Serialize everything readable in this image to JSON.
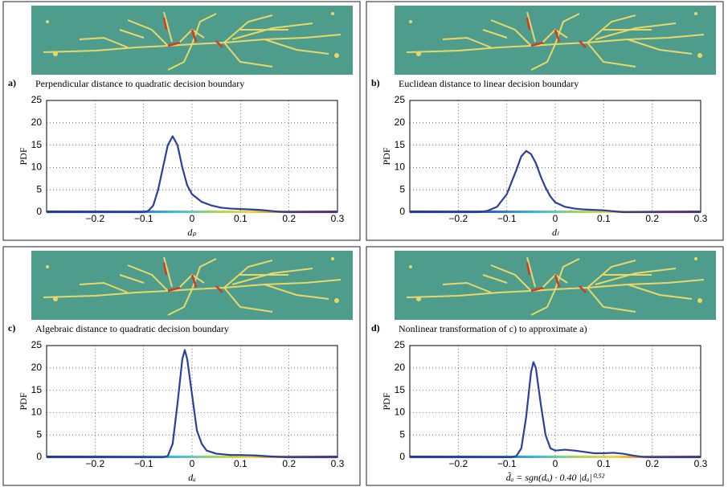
{
  "chart_data": [
    {
      "type": "line",
      "panel_label": "a)",
      "title": "Perpendicular distance to quadratic decision boundary",
      "xlabel": "dₚ",
      "ylabel": "PDF",
      "xlim": [
        -0.3,
        0.3
      ],
      "ylim": [
        0,
        25
      ],
      "xticks": [
        {
          "value": -0.2,
          "label": "−0.2"
        },
        {
          "value": -0.1,
          "label": "−0.1"
        },
        0,
        0.1,
        0.2,
        0.3
      ],
      "yticks": [
        0,
        5,
        10,
        15,
        20,
        25
      ],
      "grid": true,
      "color": "#2b3f9e",
      "x": [
        -0.3,
        -0.1,
        -0.09,
        -0.08,
        -0.07,
        -0.06,
        -0.05,
        -0.04,
        -0.03,
        -0.02,
        -0.01,
        0,
        0.02,
        0.04,
        0.06,
        0.08,
        0.1,
        0.12,
        0.14,
        0.16,
        0.18,
        0.2,
        0.3
      ],
      "values": [
        0,
        0,
        0.3,
        1.5,
        5,
        10,
        15,
        17,
        15,
        10,
        6,
        4,
        2.3,
        1.5,
        1,
        0.8,
        0.7,
        0.6,
        0.5,
        0.3,
        0.1,
        0,
        0
      ]
    },
    {
      "type": "line",
      "panel_label": "b)",
      "title": "Euclidean distance to linear decision boundary",
      "xlabel": "dₗ",
      "ylabel": "PDF",
      "xlim": [
        -0.3,
        0.3
      ],
      "ylim": [
        0,
        25
      ],
      "xticks": [
        {
          "value": -0.2,
          "label": "−0.2"
        },
        {
          "value": -0.1,
          "label": "−0.1"
        },
        0,
        0.1,
        0.2,
        0.3
      ],
      "yticks": [
        0,
        5,
        10,
        15,
        20,
        25
      ],
      "grid": true,
      "color": "#2b3f9e",
      "x": [
        -0.3,
        -0.16,
        -0.14,
        -0.12,
        -0.1,
        -0.08,
        -0.07,
        -0.06,
        -0.05,
        -0.04,
        -0.03,
        -0.02,
        -0.01,
        0,
        0.02,
        0.04,
        0.06,
        0.08,
        0.1,
        0.12,
        0.14,
        0.3
      ],
      "values": [
        0,
        0,
        0.3,
        1.2,
        4,
        9.5,
        12.5,
        13.7,
        13,
        11,
        8,
        5.5,
        3.5,
        2.2,
        1.2,
        0.8,
        0.6,
        0.5,
        0.4,
        0.2,
        0,
        0
      ]
    },
    {
      "type": "line",
      "panel_label": "c)",
      "title": "Algebraic distance to quadratic decision boundary",
      "xlabel": "dₐ",
      "ylabel": "PDF",
      "xlim": [
        -0.3,
        0.3
      ],
      "ylim": [
        0,
        25
      ],
      "xticks": [
        {
          "value": -0.2,
          "label": "−0.2"
        },
        {
          "value": -0.1,
          "label": "−0.1"
        },
        0,
        0.1,
        0.2,
        0.3
      ],
      "yticks": [
        0,
        5,
        10,
        15,
        20,
        25
      ],
      "grid": true,
      "color": "#2b3f9e",
      "x": [
        -0.3,
        -0.06,
        -0.05,
        -0.04,
        -0.03,
        -0.02,
        -0.015,
        -0.01,
        0,
        0.01,
        0.02,
        0.03,
        0.05,
        0.08,
        0.1,
        0.13,
        0.16,
        0.2,
        0.3
      ],
      "values": [
        0,
        0,
        0.3,
        3,
        12,
        22,
        24,
        22,
        14,
        6,
        3,
        1.5,
        0.8,
        0.5,
        0.5,
        0.4,
        0.2,
        0,
        0
      ]
    },
    {
      "type": "line",
      "panel_label": "d)",
      "title": "Nonlinear transformation of c) to approximate a)",
      "xlabel": "d̃ₐ = sgn(dₐ) · 0.40 |dₐ|⁰·⁵²",
      "ylabel": "PDF",
      "xlim": [
        -0.3,
        0.3
      ],
      "ylim": [
        0,
        25
      ],
      "xticks": [
        {
          "value": -0.2,
          "label": "−0.2"
        },
        {
          "value": -0.1,
          "label": "−0.1"
        },
        0,
        0.1,
        0.2,
        0.3
      ],
      "yticks": [
        0,
        5,
        10,
        15,
        20,
        25
      ],
      "grid": true,
      "color": "#2b3f9e",
      "x": [
        -0.3,
        -0.09,
        -0.08,
        -0.07,
        -0.06,
        -0.05,
        -0.045,
        -0.04,
        -0.03,
        -0.02,
        -0.01,
        0,
        0.02,
        0.04,
        0.06,
        0.08,
        0.1,
        0.12,
        0.14,
        0.16,
        0.18,
        0.2,
        0.3
      ],
      "values": [
        0,
        0,
        0.3,
        2,
        9,
        19,
        21.3,
        20,
        12,
        5,
        2,
        1.5,
        1.7,
        1.5,
        1.2,
        0.9,
        0.9,
        1,
        0.8,
        0.4,
        0.1,
        0,
        0
      ]
    }
  ]
}
